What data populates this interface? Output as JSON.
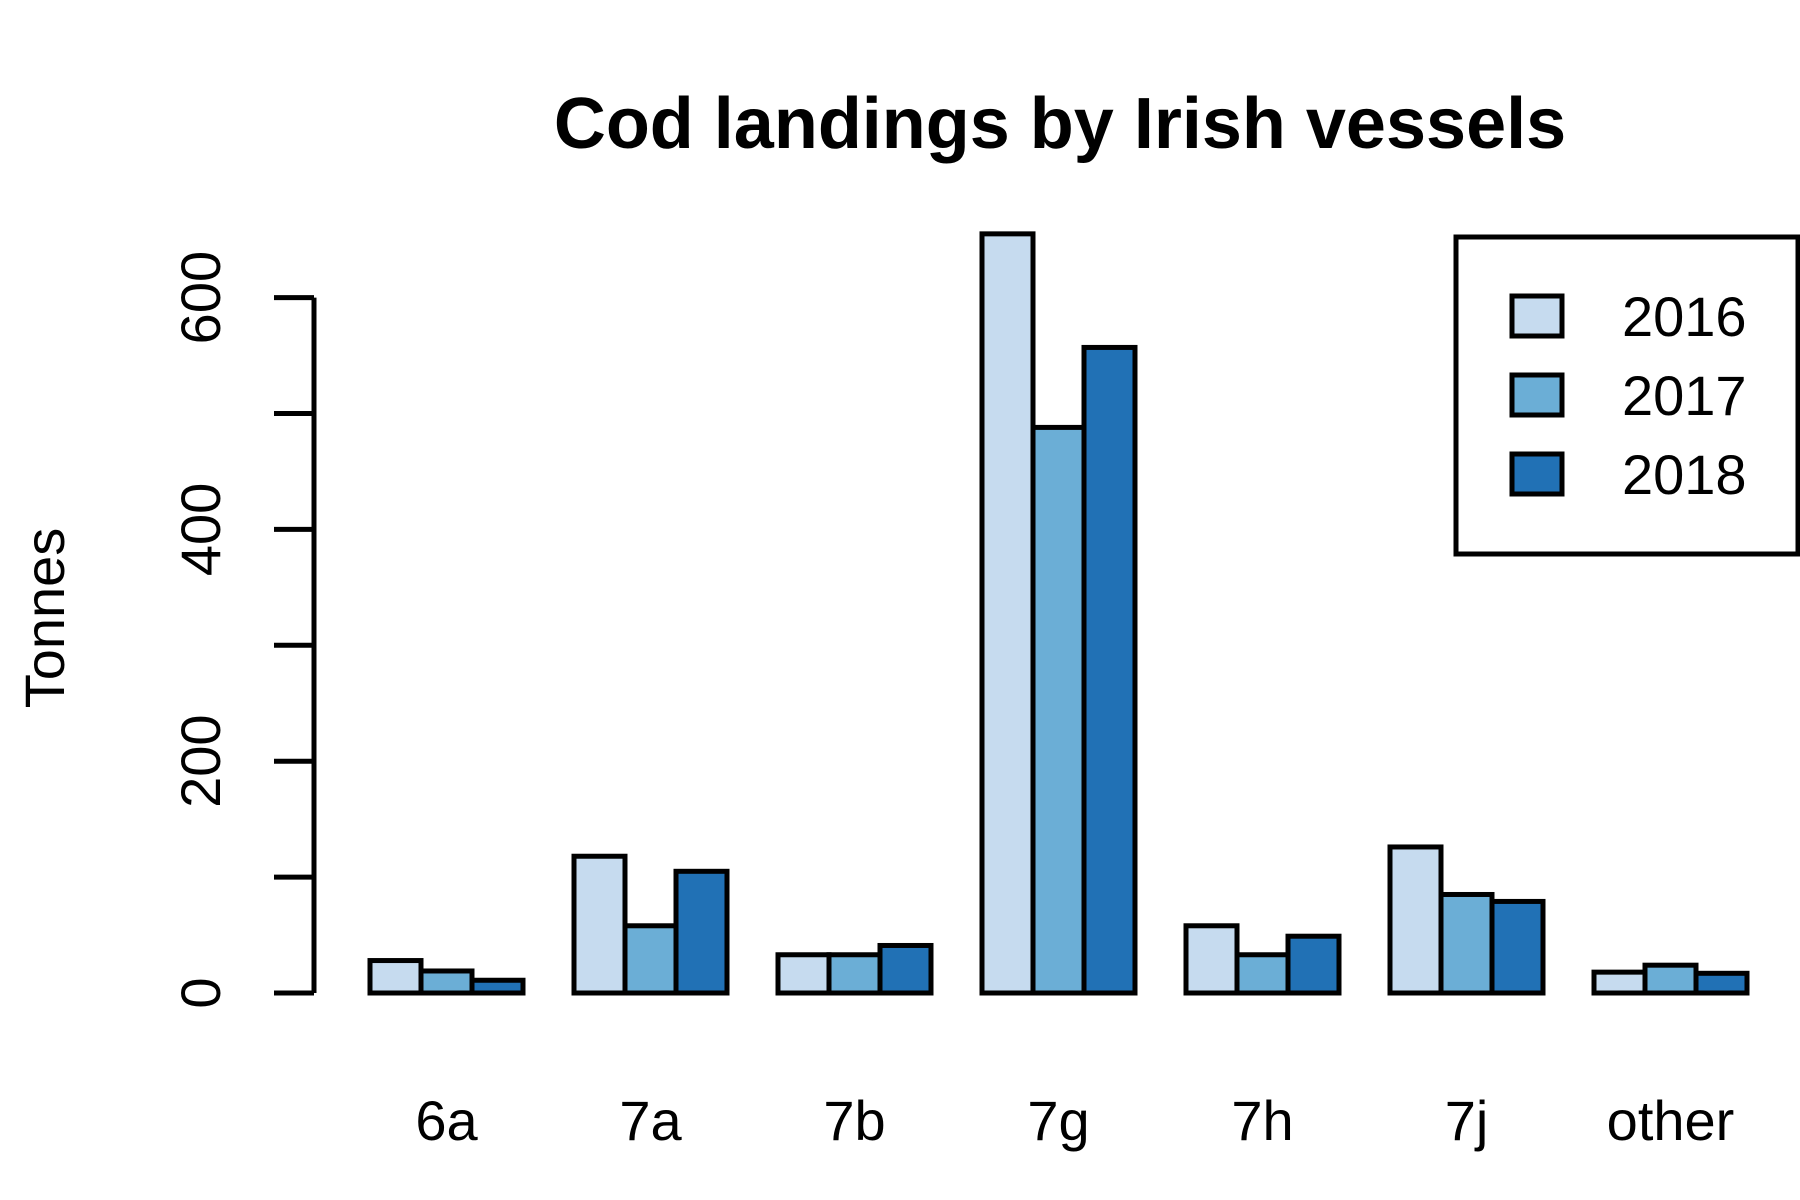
{
  "chart_data": {
    "type": "bar",
    "title": "Cod landings by Irish vessels",
    "xlabel": "",
    "ylabel": "Tonnes",
    "categories": [
      "6a",
      "7a",
      "7b",
      "7g",
      "7h",
      "7j",
      "other"
    ],
    "series": [
      {
        "name": "2016",
        "color": "#c6dbef",
        "values": [
          28,
          118,
          33,
          655,
          58,
          126,
          18
        ]
      },
      {
        "name": "2017",
        "color": "#6baed6",
        "values": [
          19,
          58,
          33,
          488,
          33,
          85,
          24
        ]
      },
      {
        "name": "2018",
        "color": "#2171b5",
        "values": [
          11,
          105,
          41,
          557,
          49,
          79,
          17
        ]
      }
    ],
    "yticks": [
      0,
      100,
      200,
      300,
      400,
      500,
      600
    ],
    "ytick_labels": [
      "0",
      "",
      "200",
      "",
      "400",
      "",
      "600"
    ],
    "ylim": [
      0,
      655
    ],
    "grid": false,
    "legend_position": "top-right"
  }
}
